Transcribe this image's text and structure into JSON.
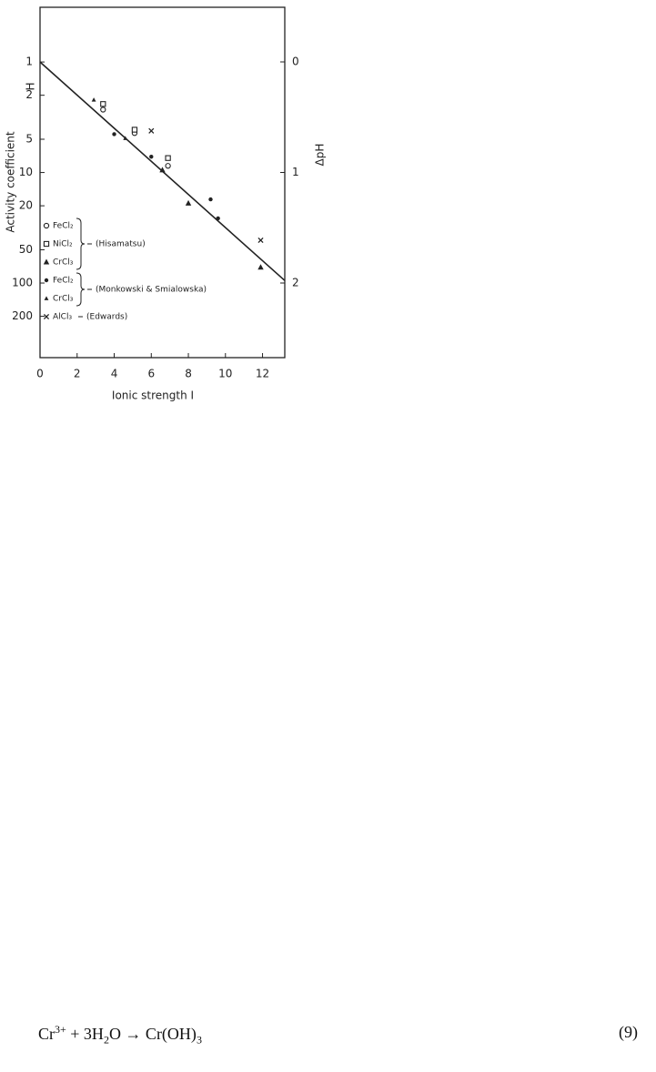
{
  "chart_data": {
    "type": "scatter",
    "x_label": "Ionic strength I",
    "y_label": "Activity coefficient",
    "y_symbol": "H",
    "y2_label": "ΔpH",
    "xlim": [
      0,
      13.2
    ],
    "xticks": [
      0,
      2,
      4,
      6,
      8,
      10,
      12
    ],
    "ylim": [
      473,
      0.32
    ],
    "yticks": [
      1,
      2,
      5,
      10,
      20,
      50,
      100,
      200
    ],
    "log_y": true,
    "y2lim": [
      2.675,
      -0.494
    ],
    "y2ticks": [
      0,
      1,
      2
    ],
    "fit_line": {
      "x": [
        0,
        13.2
      ],
      "values": [
        1,
        95
      ],
      "color": "#222"
    },
    "series_groups": [
      {
        "label": "(Hisamatsu)",
        "series": [
          {
            "name": "FeCl₂",
            "marker": "circle-open",
            "color": "#222",
            "x": [
              3.4,
              5.1,
              6.9
            ],
            "values": [
              2.7,
              4.4,
              8.7
            ]
          },
          {
            "name": "NiCl₂",
            "marker": "square-open",
            "color": "#222",
            "x": [
              3.4,
              5.1,
              6.9
            ],
            "values": [
              2.4,
              4.1,
              7.4
            ]
          },
          {
            "name": "CrCl₃",
            "marker": "triangle",
            "color": "#222",
            "x": [
              6.6,
              8.0,
              11.9
            ],
            "values": [
              9.5,
              19,
              72
            ]
          }
        ]
      },
      {
        "label": "(Monkowski & Smialowska)",
        "series": [
          {
            "name": "FeCl₂",
            "marker": "dot",
            "color": "#222",
            "x": [
              4.0,
              6.0,
              9.2,
              9.6
            ],
            "values": [
              4.5,
              7.2,
              17.5,
              26
            ]
          },
          {
            "name": "CrCl₃",
            "marker": "triangle-small",
            "color": "#222",
            "x": [
              2.9,
              4.6
            ],
            "values": [
              2.2,
              4.9
            ]
          }
        ]
      },
      {
        "label": "(Edwards)",
        "series": [
          {
            "name": "AlCl₃",
            "marker": "x",
            "color": "#222",
            "x": [
              6.0,
              11.9
            ],
            "values": [
              4.2,
              41
            ]
          }
        ]
      }
    ]
  },
  "equation": {
    "parts": [
      "Cr",
      "3+",
      " + 3H",
      "2",
      "O → Cr(OH)",
      "3"
    ],
    "number": "(9)"
  }
}
